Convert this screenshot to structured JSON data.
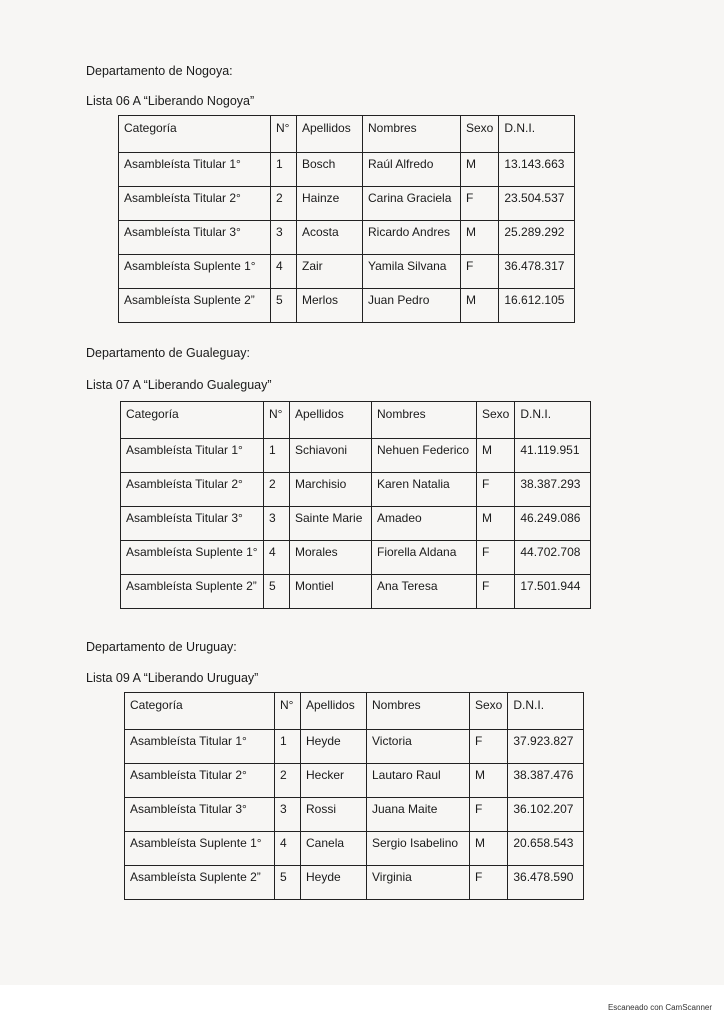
{
  "footer": {
    "scan_label": "Escaneado con CamScanner"
  },
  "columns": [
    "Categoría",
    "N°",
    "Apellidos",
    "Nombres",
    "Sexo",
    "D.N.I."
  ],
  "sections": [
    {
      "department": "Departamento de Nogoya:",
      "list": "Lista 06 A “Liberando Nogoya”",
      "rows": [
        [
          "Asambleísta Titular 1°",
          "1",
          "Bosch",
          "Raúl Alfredo",
          "M",
          "13.143.663"
        ],
        [
          "Asambleísta Titular 2°",
          "2",
          "Hainze",
          "Carina Graciela",
          "F",
          "23.504.537"
        ],
        [
          "Asambleísta Titular 3°",
          "3",
          "Acosta",
          "Ricardo Andres",
          "M",
          "25.289.292"
        ],
        [
          "Asambleísta Suplente 1°",
          "4",
          "Zair",
          "Yamila Silvana",
          "F",
          "36.478.317"
        ],
        [
          "Asambleísta Suplente 2”",
          "5",
          "Merlos",
          "Juan Pedro",
          "M",
          "16.612.105"
        ]
      ]
    },
    {
      "department": "Departamento de Gualeguay:",
      "list": "Lista 07 A “Liberando Gualeguay”",
      "rows": [
        [
          "Asambleísta Titular 1°",
          "1",
          "Schiavoni",
          "Nehuen Federico",
          "M",
          "41.119.951"
        ],
        [
          "Asambleísta Titular 2°",
          "2",
          "Marchisio",
          "Karen Natalia",
          "F",
          "38.387.293"
        ],
        [
          "Asambleísta Titular 3°",
          "3",
          "Sainte Marie",
          "Amadeo",
          "M",
          "46.249.086"
        ],
        [
          "Asambleísta Suplente 1°",
          "4",
          "Morales",
          "Fiorella Aldana",
          "F",
          "44.702.708"
        ],
        [
          "Asambleísta Suplente 2”",
          "5",
          "Montiel",
          "Ana Teresa",
          "F",
          "17.501.944"
        ]
      ]
    },
    {
      "department": "Departamento de Uruguay:",
      "list": "Lista 09 A “Liberando Uruguay”",
      "rows": [
        [
          "Asambleísta Titular 1°",
          "1",
          "Heyde",
          "Victoria",
          "F",
          "37.923.827"
        ],
        [
          "Asambleísta Titular 2°",
          "2",
          "Hecker",
          "Lautaro Raul",
          "M",
          "38.387.476"
        ],
        [
          "Asambleísta Titular 3°",
          "3",
          "Rossi",
          "Juana Maite",
          "F",
          "36.102.207"
        ],
        [
          "Asambleísta Suplente 1°",
          "4",
          "Canela",
          "Sergio Isabelino",
          "M",
          "20.658.543"
        ],
        [
          "Asambleísta Suplente 2”",
          "5",
          "Heyde",
          "Virginia",
          "F",
          "36.478.590"
        ]
      ]
    }
  ]
}
